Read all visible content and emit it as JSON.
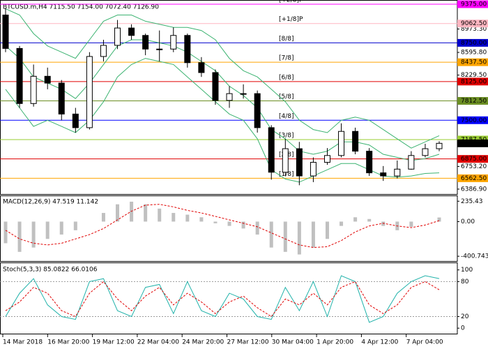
{
  "chart_data": [
    {
      "type": "candlestick",
      "title": "BTCUSD.m,H4  7115.50 7154.00 7072.40 7126.90",
      "open": [
        9200,
        8660,
        7770,
        8210,
        8100,
        7600,
        7380,
        8530,
        8710,
        8990,
        8870,
        8650,
        8650,
        8870,
        8430,
        8270,
        7820,
        7930,
        7930,
        7380,
        6660,
        7040,
        6600,
        6820,
        6930,
        7320,
        7000,
        6650,
        6600,
        6710,
        6930,
        7040
      ],
      "high": [
        9310,
        8700,
        8400,
        8350,
        8150,
        7700,
        8600,
        8800,
        9120,
        9050,
        8900,
        8950,
        9000,
        8900,
        8520,
        8320,
        8050,
        8080,
        7980,
        7420,
        7200,
        7150,
        6900,
        7050,
        7450,
        7380,
        7050,
        6760,
        6850,
        7000,
        7120,
        7160
      ],
      "low": [
        8600,
        7700,
        7720,
        8000,
        7500,
        7300,
        7350,
        8450,
        8650,
        8800,
        8550,
        8450,
        8600,
        8350,
        8200,
        7750,
        7700,
        7850,
        7300,
        6540,
        6600,
        6450,
        6500,
        6780,
        6900,
        6950,
        6600,
        6520,
        6560,
        6700,
        6900,
        7000
      ],
      "close": [
        8660,
        7770,
        8210,
        8100,
        7600,
        7380,
        8530,
        8710,
        8990,
        8870,
        8650,
        8650,
        8870,
        8430,
        8270,
        7820,
        7930,
        7930,
        7380,
        6660,
        7040,
        6600,
        6820,
        6930,
        7320,
        7000,
        6650,
        6600,
        6710,
        6930,
        7040,
        7127
      ],
      "bands": {
        "color": "#3cb371",
        "upper": [
          9300,
          9200,
          8900,
          8700,
          8600,
          8500,
          8800,
          9100,
          9200,
          9200,
          9100,
          9050,
          9000,
          9000,
          8950,
          8800,
          8500,
          8300,
          8200,
          8000,
          7800,
          7500,
          7350,
          7300,
          7500,
          7550,
          7500,
          7350,
          7200,
          7050,
          7150,
          7250
        ],
        "middle": [
          8700,
          8500,
          8200,
          8100,
          8000,
          7850,
          8100,
          8400,
          8700,
          8800,
          8800,
          8750,
          8700,
          8600,
          8450,
          8300,
          8050,
          7900,
          7700,
          7350,
          7200,
          7000,
          6950,
          7000,
          7150,
          7150,
          7100,
          6950,
          6900,
          6850,
          6880,
          6950
        ],
        "lower": [
          8000,
          7700,
          7400,
          7500,
          7400,
          7300,
          7500,
          7800,
          8200,
          8400,
          8500,
          8450,
          8400,
          8200,
          8000,
          7800,
          7600,
          7500,
          7200,
          6700,
          6550,
          6500,
          6600,
          6700,
          6800,
          6800,
          6700,
          6600,
          6580,
          6600,
          6640,
          6650
        ]
      },
      "levels": [
        {
          "name": "[+2/8]P",
          "value": 9375,
          "label": "9375.00",
          "color": "#ff00ff"
        },
        {
          "name": "[+1/8]P",
          "value": 9062.5,
          "label": "9062.50",
          "color": "#ffb6c1"
        },
        {
          "name": "[8/8]",
          "value": 8750,
          "label": "8750.00",
          "color": "#0000cd"
        },
        {
          "name": "[7/8]",
          "value": 8437.5,
          "label": "8437.50",
          "color": "#ffa500"
        },
        {
          "name": "[6/8]",
          "value": 8125,
          "label": "8125.00",
          "color": "#e00000"
        },
        {
          "name": "[5/8]",
          "value": 7812.5,
          "label": "7812.50",
          "color": "#6b8e23"
        },
        {
          "name": "[4/8]",
          "value": 7500,
          "label": "7500.00",
          "color": "#0000ff"
        },
        {
          "name": "[3/8]",
          "value": 7187.5,
          "label": "7187.50",
          "color": "#9acd32"
        },
        {
          "name": "[2/8]",
          "value": 6875,
          "label": "6875.00",
          "color": "#e00000"
        },
        {
          "name": "[1/8]",
          "value": 6562.5,
          "label": "6562.50",
          "color": "#ffa500"
        }
      ],
      "last_price": {
        "value": 7126.9,
        "label": "7126.90"
      },
      "ylim": [
        6330,
        9420
      ],
      "yticks": [
        {
          "value": 8973.3,
          "label": "8973.30"
        },
        {
          "value": 8595.8,
          "label": "8595.80"
        },
        {
          "value": 8229.5,
          "label": "8229.50"
        },
        {
          "value": 6753.2,
          "label": "6753.20"
        },
        {
          "value": 6386.9,
          "label": "6386.90"
        }
      ]
    },
    {
      "type": "bar",
      "title": "MACD(12,26,9) 47.519 11.142",
      "series": [
        {
          "name": "MACD",
          "color": "#c0c0c0",
          "values": [
            -250,
            -350,
            -300,
            -200,
            -150,
            -100,
            0,
            100,
            200,
            230,
            200,
            150,
            100,
            80,
            50,
            -20,
            -50,
            -80,
            -150,
            -300,
            -350,
            -380,
            -300,
            -200,
            -50,
            50,
            30,
            -50,
            -100,
            -60,
            0,
            47.519
          ]
        },
        {
          "name": "Signal",
          "color": "#e00000",
          "values": [
            -100,
            -200,
            -250,
            -270,
            -250,
            -200,
            -150,
            -80,
            20,
            120,
            190,
            200,
            170,
            130,
            100,
            60,
            20,
            -20,
            -60,
            -130,
            -200,
            -270,
            -300,
            -290,
            -220,
            -120,
            -50,
            -20,
            -50,
            -70,
            -40,
            11.142
          ]
        }
      ],
      "ylim": [
        -440,
        270
      ],
      "yticks": [
        {
          "value": 235.43,
          "label": "235.43"
        },
        {
          "value": 0,
          "label": "0.00"
        },
        {
          "value": -400.743,
          "label": "-400.743"
        }
      ]
    },
    {
      "type": "line",
      "title": "Stoch(5,3,3) 85.0822 66.0106",
      "series": [
        {
          "name": "Main",
          "color": "#20b2aa",
          "values": [
            20,
            60,
            85,
            40,
            20,
            15,
            80,
            85,
            30,
            20,
            70,
            75,
            25,
            80,
            30,
            20,
            60,
            50,
            20,
            15,
            70,
            30,
            80,
            20,
            90,
            80,
            10,
            20,
            60,
            80,
            90,
            85.0822
          ]
        },
        {
          "name": "Signal",
          "color": "#e00000",
          "values": [
            30,
            45,
            70,
            60,
            30,
            20,
            60,
            80,
            50,
            30,
            55,
            70,
            40,
            60,
            45,
            25,
            45,
            55,
            35,
            20,
            50,
            40,
            60,
            40,
            70,
            80,
            40,
            25,
            40,
            70,
            80,
            66.0106
          ]
        }
      ],
      "ylim": [
        -7,
        108
      ],
      "yticks": [
        100,
        80,
        20,
        0
      ],
      "dotted_levels": [
        80,
        20
      ],
      "x_labels": [
        "14 Mar 2018",
        "16 Mar 20:00",
        "19 Mar 12:00",
        "22 Mar 04:00",
        "24 Mar 20:00",
        "27 Mar 12:00",
        "30 Mar 04:00",
        "1 Apr 20:00",
        "4 Apr 12:00",
        "7 Apr 04:00"
      ]
    }
  ]
}
